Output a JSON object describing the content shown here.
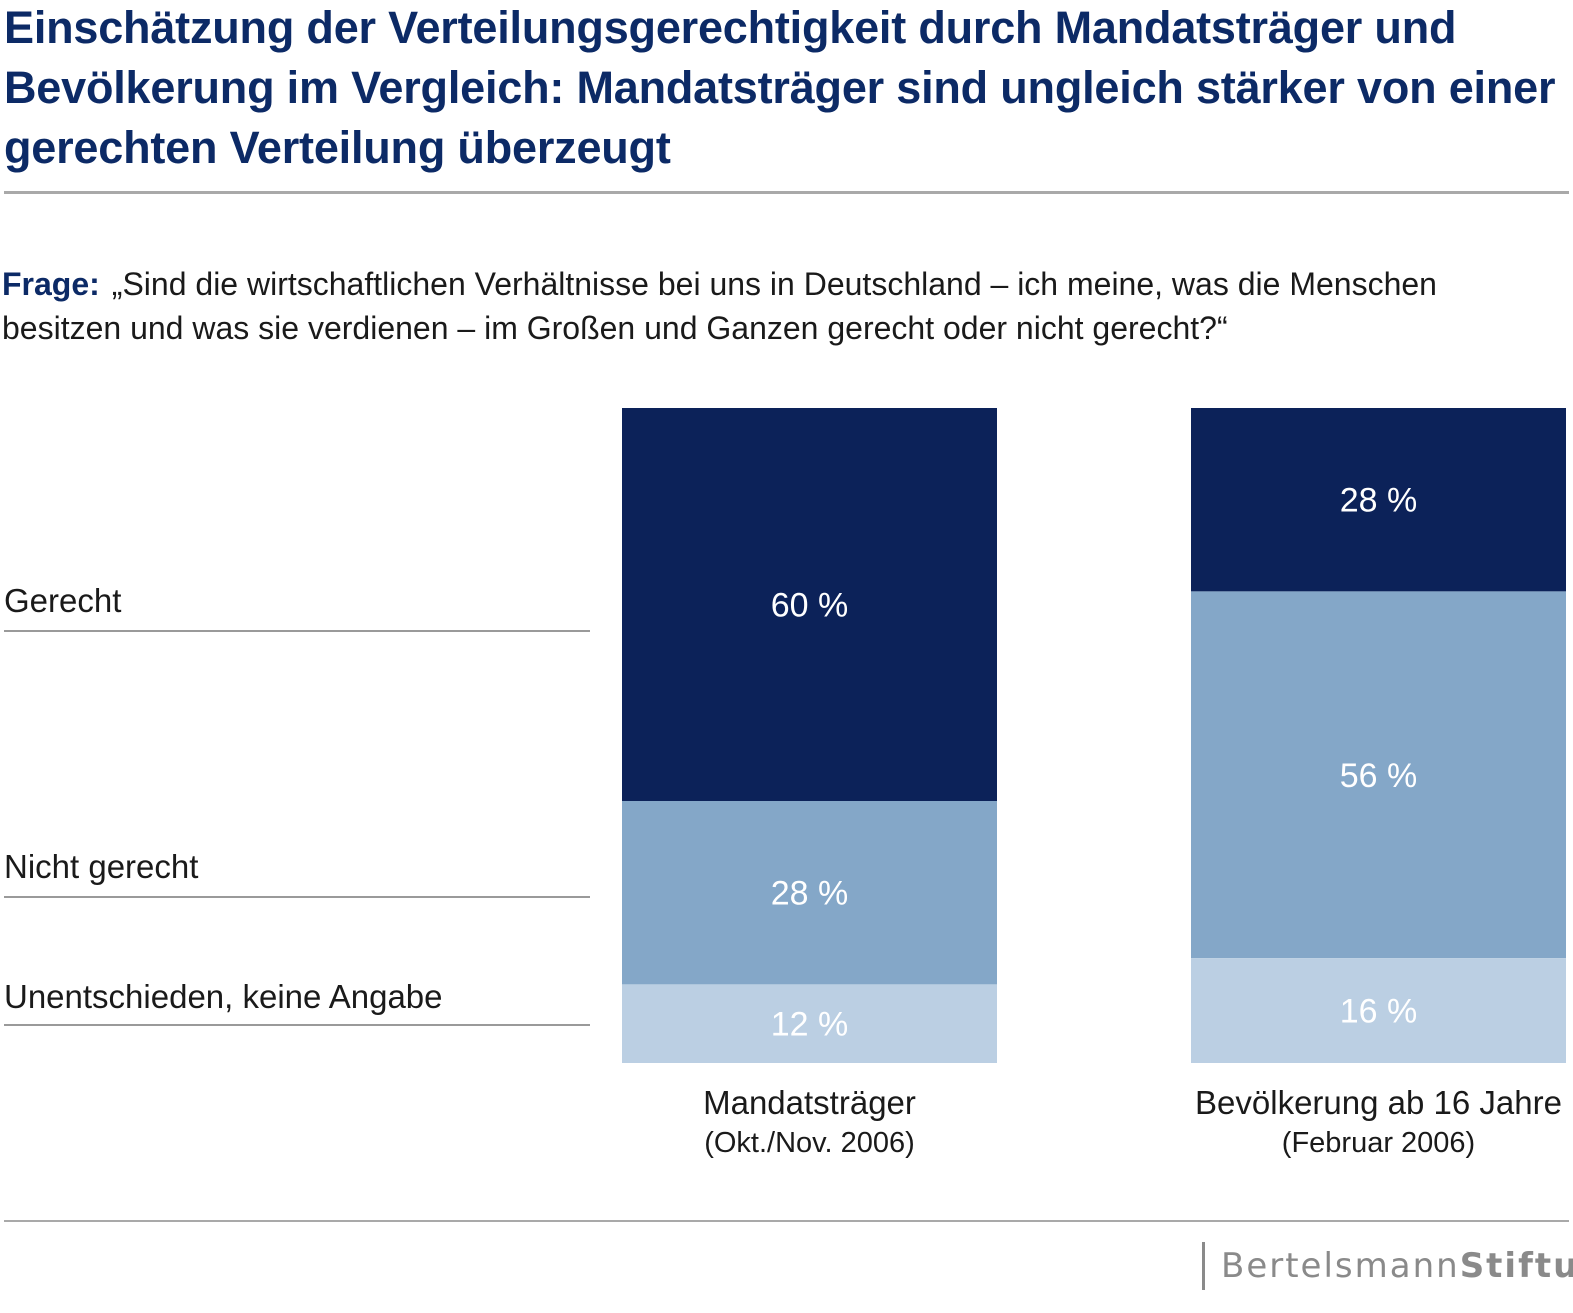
{
  "title": "Einschätzung der Verteilungsgerechtigkeit durch Mandatsträger und Bevölkerung im Vergleich: Mandatsträger sind ungleich stärker von einer gerechten Verteilung überzeugt",
  "question": {
    "label": "Frage:",
    "text": "„Sind die wirtschaftlichen Verhältnisse bei uns in Deutschland – ich meine, was die Menschen besitzen und was sie verdienen – im Großen und Ganzen gerecht oder nicht gerecht?“"
  },
  "logo": {
    "part1": "Bertelsmann",
    "part2": "Stiftung"
  },
  "colors": {
    "title": "#0c2a66",
    "gerecht": "#0c2259",
    "nicht_gerecht": "#84a7c8",
    "unentschieden": "#bbcfe3"
  },
  "chart_data": {
    "type": "bar",
    "stacked": true,
    "title": "Einschätzung der Verteilungsgerechtigkeit durch Mandatsträger und Bevölkerung im Vergleich",
    "categories": [
      {
        "name": "Mandatsträger",
        "sub": "(Okt./Nov. 2006)"
      },
      {
        "name": "Bevölkerung ab 16 Jahre",
        "sub": "(Februar 2006)"
      }
    ],
    "series": [
      {
        "name": "Gerecht",
        "values": [
          60,
          28
        ],
        "labels": [
          "60 %",
          "28 %"
        ]
      },
      {
        "name": "Nicht gerecht",
        "values": [
          28,
          56
        ],
        "labels": [
          "28 %",
          "56 %"
        ]
      },
      {
        "name": "Unentschieden, keine Angabe",
        "values": [
          12,
          16
        ],
        "labels": [
          "12 %",
          "16 %"
        ]
      }
    ],
    "unit": "%",
    "ylim": [
      0,
      100
    ]
  }
}
